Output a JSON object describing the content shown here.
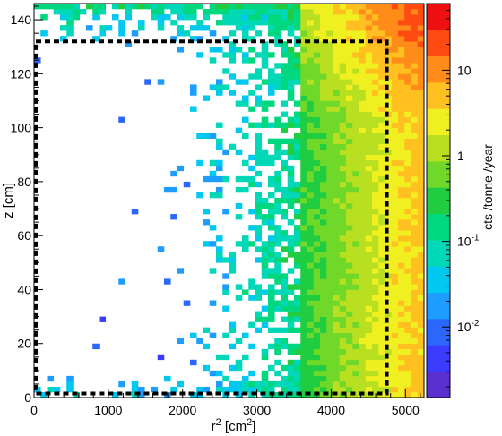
{
  "chart_data": {
    "type": "heatmap",
    "title": "",
    "xlabel": {
      "base": "r",
      "sup": "2",
      "unit_pre": " [cm",
      "unit_sup": "2",
      "unit_post": "]"
    },
    "ylabel": "z [cm]",
    "colorbar_label": "cts /tonne /year",
    "xlim": [
      0,
      5250
    ],
    "ylim": [
      0,
      146
    ],
    "x_ticks": [
      0,
      1000,
      2000,
      3000,
      4000,
      5000
    ],
    "x_tick_labels": [
      "0",
      "1000",
      "2000",
      "3000",
      "4000",
      "5000"
    ],
    "y_ticks": [
      0,
      20,
      40,
      60,
      80,
      100,
      120,
      140
    ],
    "y_tick_labels": [
      "0",
      "20",
      "40",
      "60",
      "80",
      "100",
      "120",
      "140"
    ],
    "colorbar_scale": "log",
    "colorbar_range": [
      0.0015,
      60
    ],
    "colorbar_ticks": [
      {
        "value": 0.01,
        "base": "10",
        "exp": "-2"
      },
      {
        "value": 0.1,
        "base": "10",
        "exp": "-1"
      },
      {
        "value": 1,
        "base": "1",
        "exp": ""
      },
      {
        "value": 10,
        "base": "10",
        "exp": ""
      }
    ],
    "fiducial_box": {
      "r2_min": 0,
      "r2_max": 4750,
      "z_min": 1.5,
      "z_max": 132
    },
    "colormap": [
      "#5a2fd0",
      "#3b3bff",
      "#2b66ff",
      "#1c9dff",
      "#00c8ee",
      "#00d8b8",
      "#00d880",
      "#20cc40",
      "#70d828",
      "#b8e020",
      "#f0f020",
      "#ffc020",
      "#ff8c18",
      "#ff4a12",
      "#ee1010"
    ],
    "grid": false,
    "legend": "none"
  }
}
